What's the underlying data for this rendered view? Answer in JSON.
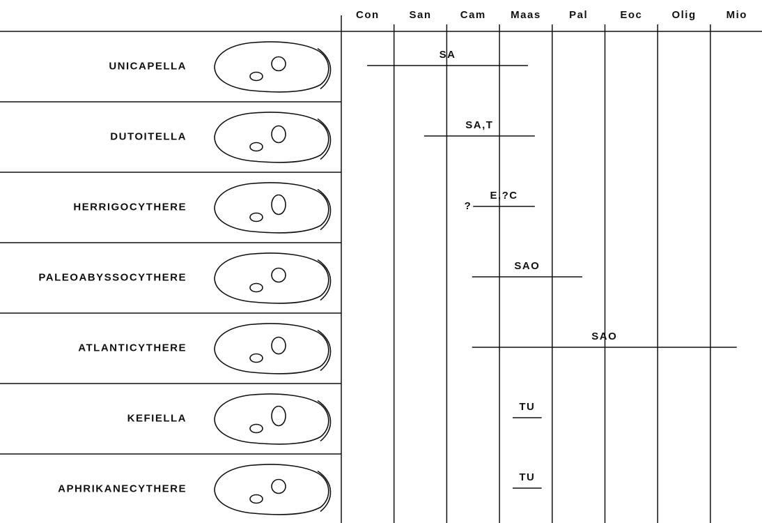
{
  "stages": [
    "Con",
    "San",
    "Cam",
    "Maas",
    "Pal",
    "Eoc",
    "Olig",
    "Mio"
  ],
  "taxa": [
    {
      "name": "UNICAPELLA",
      "label": "SA",
      "start": 0.49,
      "end": 3.54
    },
    {
      "name": "DUTOITELLA",
      "label": "SA,T",
      "start": 1.57,
      "end": 3.67
    },
    {
      "name": "HERRIGOCYTHERE",
      "prefix": "?",
      "label": "E,?C",
      "start": 2.5,
      "end": 3.67
    },
    {
      "name": "PALEOABYSSOCYTHERE",
      "label": "SAO",
      "start": 2.48,
      "end": 4.57
    },
    {
      "name": "ATLANTICYTHERE",
      "label": "SAO",
      "start": 2.48,
      "end": 7.5
    },
    {
      "name": "KEFIELLA",
      "label": "TU",
      "start": 3.25,
      "end": 3.8
    },
    {
      "name": "APHRIKANECYTHERE",
      "label": "TU",
      "start": 3.25,
      "end": 3.8
    }
  ]
}
